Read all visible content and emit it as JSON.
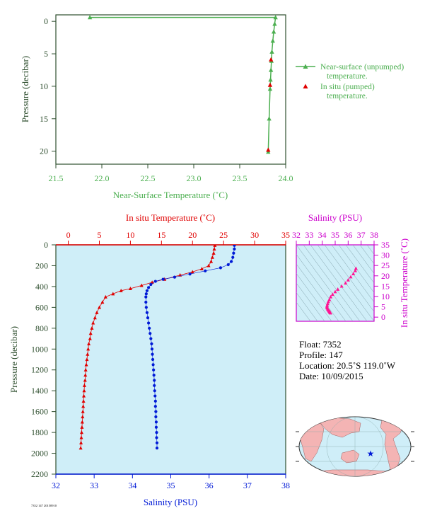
{
  "colors": {
    "near_surface": "#4caf50",
    "in_situ_temp": "#e00000",
    "salinity": "#0019d6",
    "ts_magenta": "#cc00cc",
    "ts_points": "#ff1493",
    "axis_green": "#2f4f2f",
    "ocean_fill": "#cfeef8",
    "land": "#f4b4b4"
  },
  "chart_data": [
    {
      "type": "line",
      "name": "near-surface-temperature-profile",
      "xlabel": "Near-Surface Temperature (˚C)",
      "ylabel": "Pressure (decibar)",
      "xlim": [
        21.5,
        24.0
      ],
      "ylim": [
        22,
        -1
      ],
      "x_ticks": [
        "21.5",
        "22.0",
        "22.5",
        "23.0",
        "23.5",
        "24.0"
      ],
      "y_ticks": [
        "0",
        "5",
        "10",
        "15",
        "20"
      ],
      "legend_position": "right",
      "series": [
        {
          "name": "Near-surface (unpumped) temperature.",
          "points": [
            [
              21.87,
              -0.6
            ],
            [
              23.89,
              -0.6
            ],
            [
              23.88,
              0.4
            ],
            [
              23.87,
              1.6
            ],
            [
              23.86,
              3.0
            ],
            [
              23.85,
              4.7
            ],
            [
              23.845,
              6.1
            ],
            [
              23.84,
              7.5
            ],
            [
              23.835,
              9.0
            ],
            [
              23.83,
              10.4
            ],
            [
              23.82,
              15.0
            ],
            [
              23.81,
              20.1
            ]
          ]
        },
        {
          "name": "In situ (pumped) temperature.",
          "points": [
            [
              23.84,
              5.9
            ],
            [
              23.83,
              9.8
            ],
            [
              23.81,
              19.8
            ]
          ]
        }
      ]
    },
    {
      "type": "line",
      "name": "depth-profile",
      "ylabel": "Pressure (decibar)",
      "ylim": [
        2200,
        0
      ],
      "y_ticks": [
        "0",
        "200",
        "400",
        "600",
        "800",
        "1000",
        "1200",
        "1400",
        "1600",
        "1800",
        "2000",
        "2200"
      ],
      "top_axis": {
        "label": "In situ Temperature (˚C)",
        "lim": [
          -2,
          35
        ],
        "ticks": [
          "0",
          "5",
          "10",
          "15",
          "20",
          "25",
          "30",
          "35"
        ]
      },
      "bottom_axis": {
        "label": "Salinity (PSU)",
        "lim": [
          32,
          38
        ],
        "ticks": [
          "32",
          "33",
          "34",
          "35",
          "36",
          "37",
          "38"
        ]
      },
      "series": [
        {
          "name": "In situ Temperature",
          "points": [
            [
              23.6,
              5
            ],
            [
              23.5,
              40
            ],
            [
              23.4,
              80
            ],
            [
              23.2,
              120
            ],
            [
              23.0,
              160
            ],
            [
              22.6,
              200
            ],
            [
              21.5,
              230
            ],
            [
              20.0,
              260
            ],
            [
              18.0,
              290
            ],
            [
              15.5,
              330
            ],
            [
              13.5,
              360
            ],
            [
              11.8,
              390
            ],
            [
              10.0,
              420
            ],
            [
              8.5,
              440
            ],
            [
              7.2,
              470
            ],
            [
              6.0,
              500
            ],
            [
              5.5,
              550
            ],
            [
              5.0,
              600
            ],
            [
              4.6,
              650
            ],
            [
              4.3,
              700
            ],
            [
              4.0,
              750
            ],
            [
              3.8,
              800
            ],
            [
              3.6,
              850
            ],
            [
              3.5,
              900
            ],
            [
              3.3,
              950
            ],
            [
              3.2,
              1000
            ],
            [
              3.1,
              1050
            ],
            [
              3.0,
              1100
            ],
            [
              2.9,
              1150
            ],
            [
              2.8,
              1200
            ],
            [
              2.75,
              1250
            ],
            [
              2.7,
              1300
            ],
            [
              2.6,
              1350
            ],
            [
              2.55,
              1400
            ],
            [
              2.5,
              1450
            ],
            [
              2.45,
              1500
            ],
            [
              2.4,
              1550
            ],
            [
              2.35,
              1600
            ],
            [
              2.3,
              1650
            ],
            [
              2.25,
              1700
            ],
            [
              2.2,
              1750
            ],
            [
              2.15,
              1800
            ],
            [
              2.1,
              1850
            ],
            [
              2.05,
              1900
            ],
            [
              2.0,
              1950
            ]
          ]
        },
        {
          "name": "Salinity",
          "points": [
            [
              36.66,
              5
            ],
            [
              36.66,
              40
            ],
            [
              36.64,
              80
            ],
            [
              36.62,
              120
            ],
            [
              36.58,
              160
            ],
            [
              36.5,
              190
            ],
            [
              36.3,
              220
            ],
            [
              35.9,
              250
            ],
            [
              35.5,
              280
            ],
            [
              35.1,
              310
            ],
            [
              34.8,
              330
            ],
            [
              34.6,
              350
            ],
            [
              34.48,
              380
            ],
            [
              34.42,
              410
            ],
            [
              34.38,
              440
            ],
            [
              34.36,
              470
            ],
            [
              34.35,
              500
            ],
            [
              34.35,
              550
            ],
            [
              34.36,
              600
            ],
            [
              34.38,
              650
            ],
            [
              34.4,
              700
            ],
            [
              34.42,
              750
            ],
            [
              34.44,
              800
            ],
            [
              34.46,
              850
            ],
            [
              34.48,
              900
            ],
            [
              34.5,
              950
            ],
            [
              34.51,
              1000
            ],
            [
              34.52,
              1050
            ],
            [
              34.53,
              1100
            ],
            [
              34.54,
              1150
            ],
            [
              34.55,
              1200
            ],
            [
              34.56,
              1250
            ],
            [
              34.57,
              1300
            ],
            [
              34.57,
              1350
            ],
            [
              34.58,
              1400
            ],
            [
              34.59,
              1450
            ],
            [
              34.6,
              1500
            ],
            [
              34.6,
              1550
            ],
            [
              34.61,
              1600
            ],
            [
              34.61,
              1650
            ],
            [
              34.62,
              1700
            ],
            [
              34.62,
              1750
            ],
            [
              34.63,
              1800
            ],
            [
              34.63,
              1850
            ],
            [
              34.64,
              1900
            ],
            [
              34.64,
              1950
            ]
          ]
        }
      ]
    },
    {
      "type": "scatter",
      "name": "ts-diagram",
      "xlabel": "Salinity (PSU)",
      "ylabel": "In situ Temperature (˚C)",
      "xlim": [
        32,
        38
      ],
      "ylim": [
        -2,
        35
      ],
      "x_ticks": [
        "32",
        "33",
        "34",
        "35",
        "36",
        "37",
        "38"
      ],
      "y_ticks": [
        "0",
        "5",
        "10",
        "15",
        "20",
        "25",
        "30",
        "35"
      ],
      "points": [
        [
          36.6,
          23.6
        ],
        [
          36.55,
          22.5
        ],
        [
          36.4,
          21.0
        ],
        [
          36.2,
          19.5
        ],
        [
          36.0,
          18.0
        ],
        [
          35.8,
          16.5
        ],
        [
          35.5,
          15.0
        ],
        [
          35.2,
          13.5
        ],
        [
          35.0,
          12.3
        ],
        [
          34.8,
          11.0
        ],
        [
          34.65,
          9.8
        ],
        [
          34.55,
          8.5
        ],
        [
          34.47,
          7.5
        ],
        [
          34.42,
          6.5
        ],
        [
          34.38,
          5.7
        ],
        [
          34.36,
          5.0
        ],
        [
          34.38,
          4.5
        ],
        [
          34.42,
          4.0
        ],
        [
          34.46,
          3.6
        ],
        [
          34.5,
          3.3
        ],
        [
          34.53,
          3.0
        ],
        [
          34.56,
          2.8
        ],
        [
          34.58,
          2.6
        ],
        [
          34.6,
          2.4
        ],
        [
          34.62,
          2.2
        ],
        [
          34.64,
          2.0
        ]
      ]
    }
  ],
  "info": {
    "float": "Float:  7352",
    "profile": "Profile:  147",
    "location": "Location:  20.5˚S  119.0˚W",
    "date": "Date:  10/09/2015"
  },
  "footer_note": "7352 147 20150910"
}
